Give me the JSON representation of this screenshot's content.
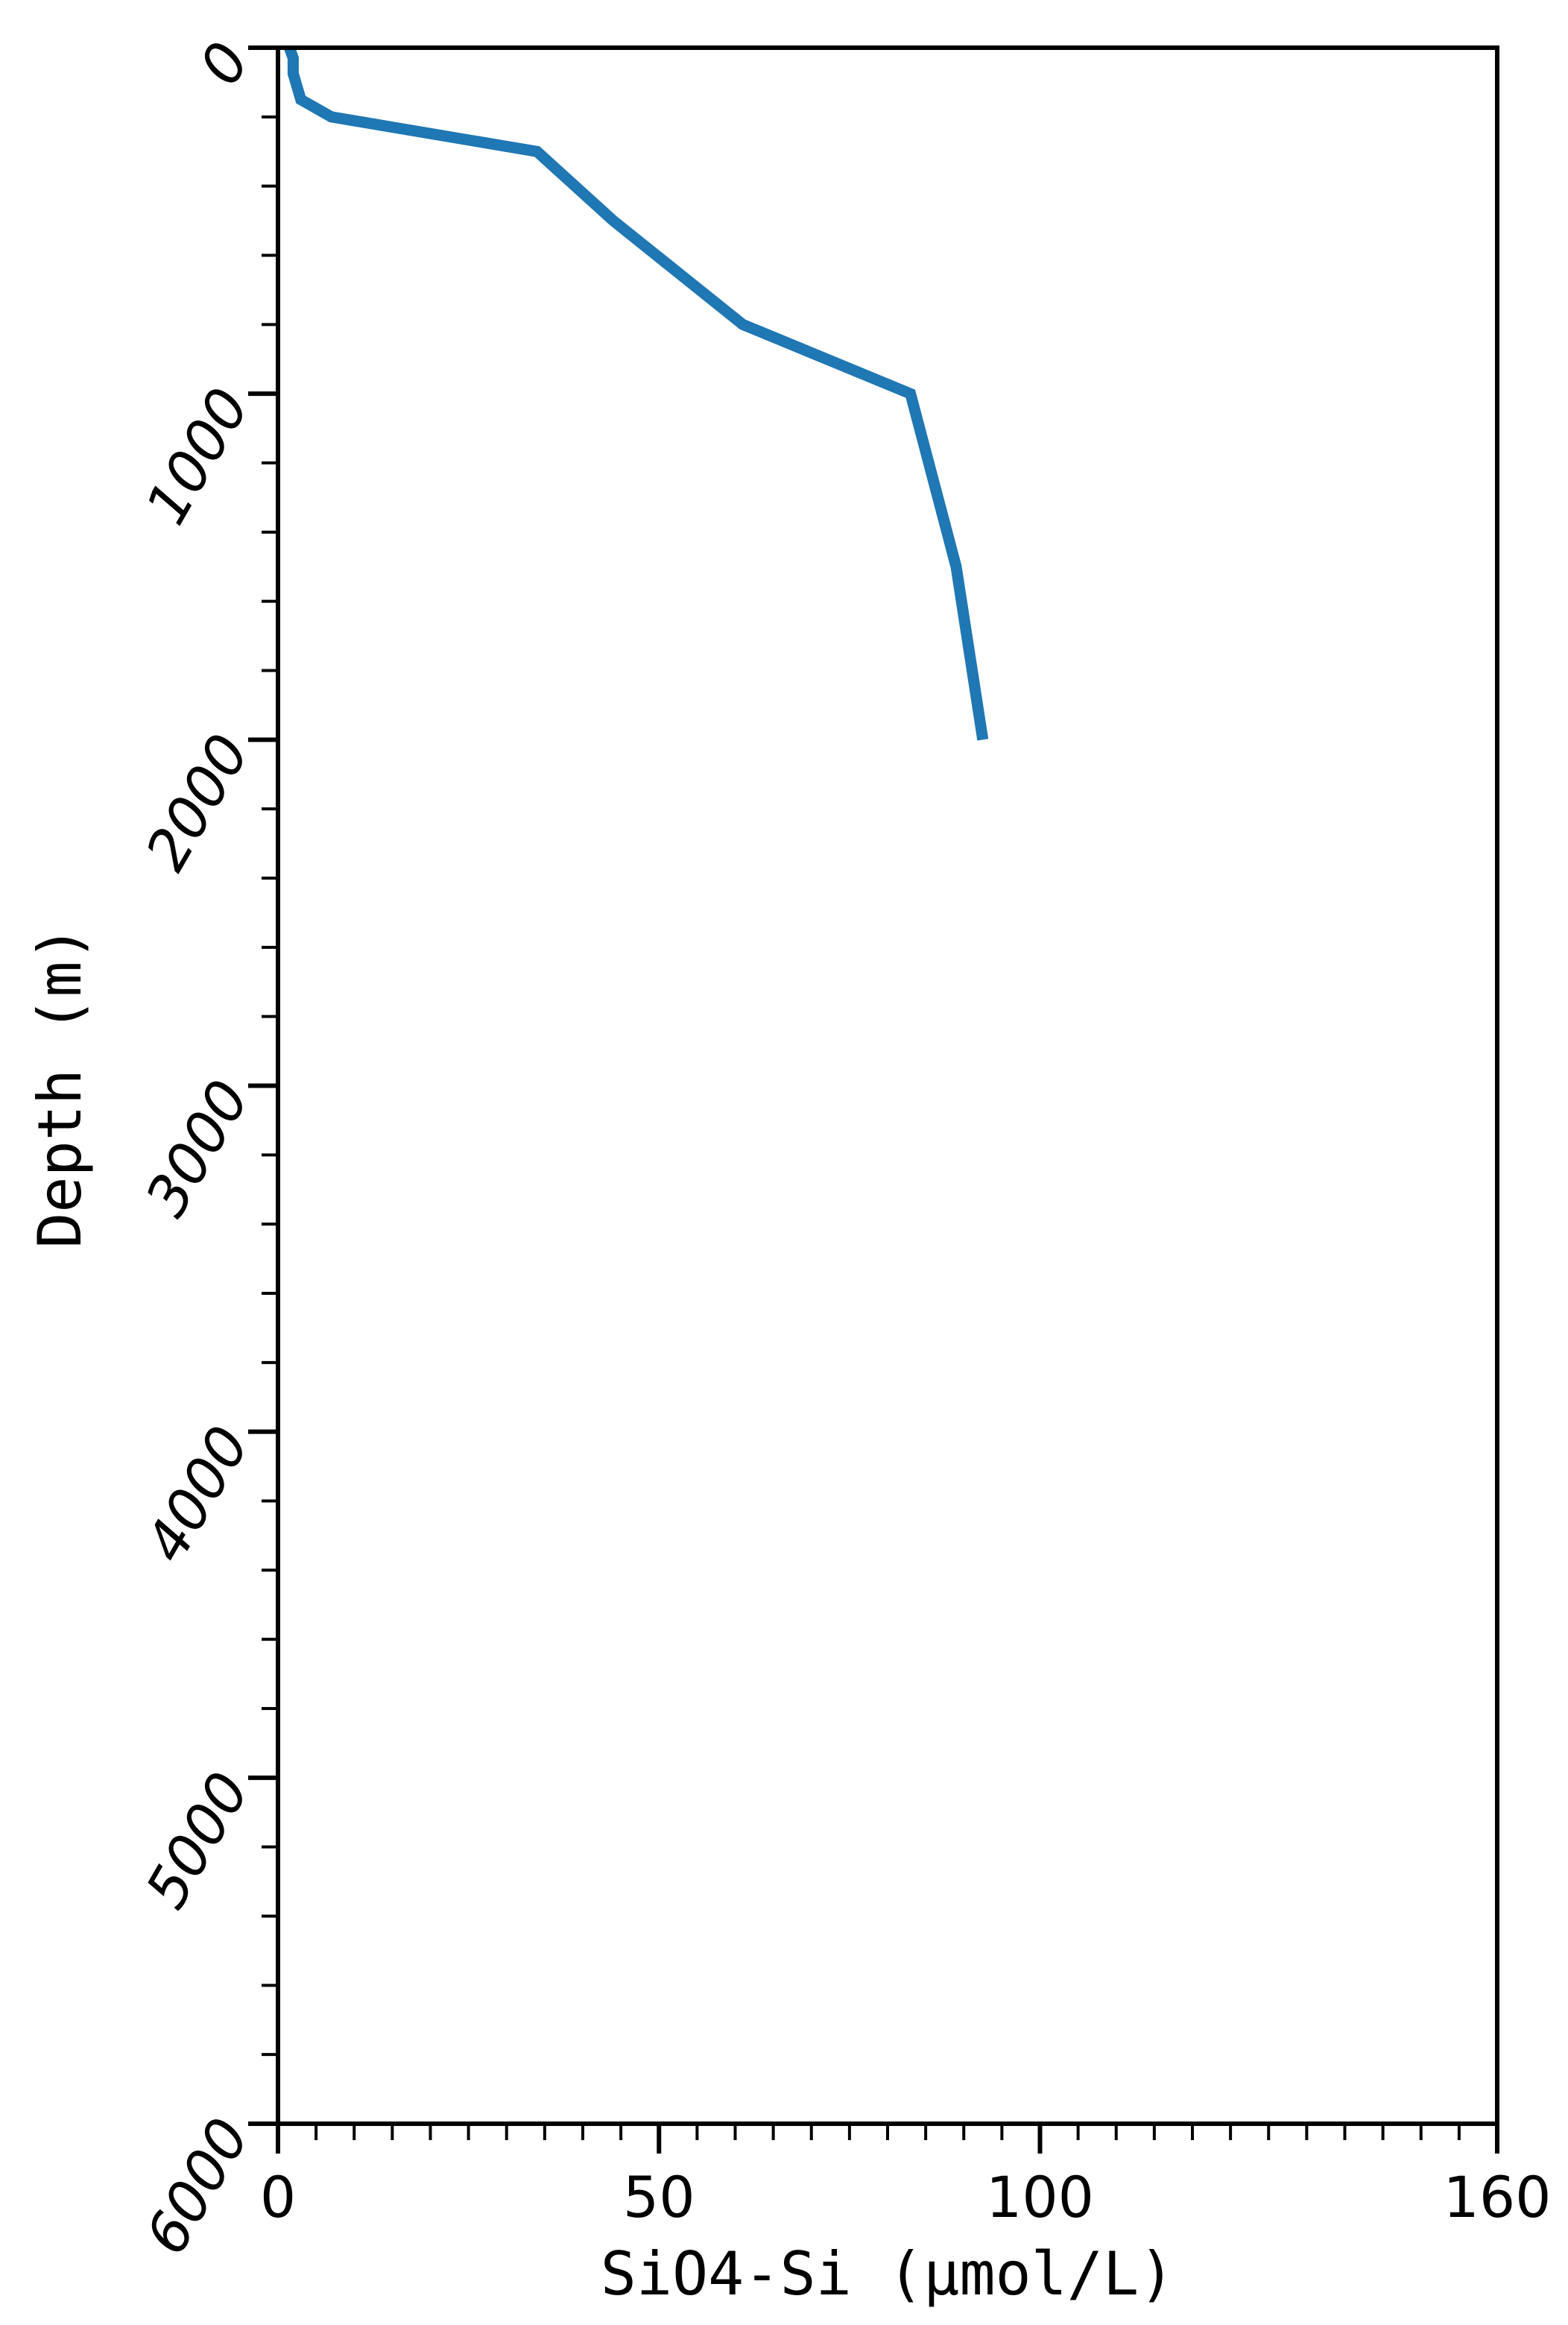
{
  "chart_data": {
    "type": "line",
    "title": "",
    "xlabel": "SiO4-Si (μmol/L)",
    "ylabel": "Depth (m)",
    "xlim": [
      0,
      160
    ],
    "ylim": [
      6000,
      0
    ],
    "x_ticks": [
      0,
      50,
      100,
      160
    ],
    "x_tick_labels": [
      "0",
      "50",
      "100",
      "160"
    ],
    "x_minor_step": 5,
    "y_ticks": [
      0,
      1000,
      2000,
      3000,
      4000,
      5000,
      6000
    ],
    "y_tick_labels": [
      "0",
      "1000",
      "2000",
      "3000",
      "4000",
      "5000",
      "6000"
    ],
    "y_minor_step": 200,
    "grid": false,
    "series": [
      {
        "color": "#1f77b4",
        "x": [
          1.5,
          2,
          2,
          3,
          7,
          34,
          44,
          61,
          83,
          89,
          92.5
        ],
        "y": [
          0,
          30,
          75,
          150,
          200,
          300,
          500,
          800,
          1000,
          1500,
          2000
        ]
      }
    ]
  }
}
